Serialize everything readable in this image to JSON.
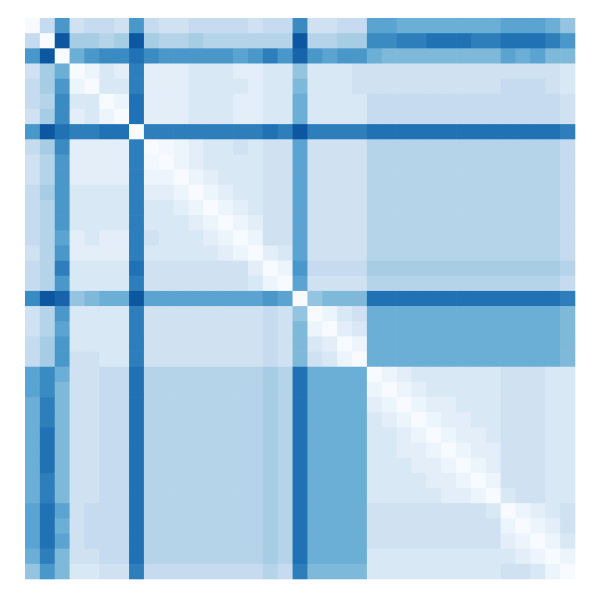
{
  "chart_data": {
    "type": "heatmap",
    "title": "",
    "xlabel": "",
    "ylabel": "",
    "axes_visible": false,
    "colorbar_visible": false,
    "colormap": "Blues",
    "value_range": [
      0,
      1
    ],
    "colors": {
      "low": "#f7fbff",
      "high": "#08306b"
    },
    "rows": 37,
    "cols": 37,
    "diagonal_value": 0,
    "symmetric": true,
    "values": [
      [
        0,
        0.25,
        0.6,
        0.2,
        0.25,
        0.25,
        0.2,
        0.6,
        0.25,
        0.2,
        0.2,
        0.25,
        0.25,
        0.25,
        0.25,
        0.2,
        0.25,
        0.25,
        0.65,
        0.2,
        0.2,
        0.25,
        0.25,
        0.55,
        0.55,
        0.5,
        0.5,
        0.5,
        0.5,
        0.5,
        0.5,
        0.5,
        0.55,
        0.55,
        0.55,
        0.5,
        0.4
      ],
      [
        0.25,
        0,
        0.85,
        0.35,
        0.35,
        0.3,
        0.35,
        0.85,
        0.35,
        0.3,
        0.3,
        0.35,
        0.3,
        0.3,
        0.3,
        0.3,
        0.3,
        0.3,
        0.85,
        0.3,
        0.3,
        0.35,
        0.35,
        0.65,
        0.65,
        0.7,
        0.7,
        0.75,
        0.75,
        0.75,
        0.7,
        0.7,
        0.75,
        0.75,
        0.75,
        0.7,
        0.6
      ],
      [
        0.6,
        0.85,
        0,
        0.5,
        0.6,
        0.65,
        0.65,
        0.75,
        0.65,
        0.6,
        0.6,
        0.6,
        0.6,
        0.6,
        0.55,
        0.6,
        0.7,
        0.6,
        0.8,
        0.6,
        0.55,
        0.6,
        0.6,
        0.5,
        0.45,
        0.45,
        0.45,
        0.45,
        0.45,
        0.45,
        0.45,
        0.45,
        0.55,
        0.5,
        0.55,
        0.45,
        0.45
      ],
      [
        0.2,
        0.35,
        0.5,
        0,
        0.05,
        0.15,
        0.1,
        0.7,
        0.1,
        0.1,
        0.1,
        0.15,
        0.15,
        0.15,
        0.1,
        0.1,
        0.15,
        0.15,
        0.4,
        0.15,
        0.15,
        0.15,
        0.2,
        0.2,
        0.2,
        0.2,
        0.2,
        0.2,
        0.2,
        0.2,
        0.2,
        0.2,
        0.2,
        0.2,
        0.2,
        0.2,
        0.15
      ],
      [
        0.25,
        0.35,
        0.6,
        0.05,
        0,
        0.15,
        0.15,
        0.7,
        0.1,
        0.1,
        0.1,
        0.15,
        0.15,
        0.15,
        0.15,
        0.1,
        0.15,
        0.15,
        0.45,
        0.15,
        0.15,
        0.15,
        0.2,
        0.2,
        0.2,
        0.2,
        0.2,
        0.2,
        0.2,
        0.2,
        0.2,
        0.2,
        0.25,
        0.25,
        0.25,
        0.2,
        0.15
      ],
      [
        0.25,
        0.3,
        0.65,
        0.15,
        0.15,
        0,
        0.05,
        0.75,
        0.1,
        0.1,
        0.1,
        0.15,
        0.15,
        0.15,
        0.1,
        0.1,
        0.15,
        0.15,
        0.5,
        0.15,
        0.15,
        0.15,
        0.15,
        0.25,
        0.25,
        0.25,
        0.25,
        0.25,
        0.25,
        0.25,
        0.25,
        0.25,
        0.25,
        0.25,
        0.25,
        0.25,
        0.2
      ],
      [
        0.2,
        0.35,
        0.65,
        0.1,
        0.15,
        0.05,
        0,
        0.75,
        0.1,
        0.1,
        0.1,
        0.15,
        0.15,
        0.15,
        0.1,
        0.1,
        0.15,
        0.15,
        0.5,
        0.15,
        0.15,
        0.15,
        0.15,
        0.25,
        0.25,
        0.25,
        0.25,
        0.25,
        0.25,
        0.25,
        0.25,
        0.25,
        0.25,
        0.25,
        0.25,
        0.25,
        0.2
      ],
      [
        0.6,
        0.85,
        0.75,
        0.7,
        0.7,
        0.75,
        0.75,
        0,
        0.7,
        0.7,
        0.7,
        0.7,
        0.7,
        0.7,
        0.7,
        0.7,
        0.75,
        0.7,
        0.85,
        0.7,
        0.7,
        0.7,
        0.7,
        0.75,
        0.75,
        0.75,
        0.75,
        0.75,
        0.75,
        0.75,
        0.75,
        0.75,
        0.75,
        0.75,
        0.75,
        0.75,
        0.7
      ],
      [
        0.25,
        0.35,
        0.65,
        0.1,
        0.1,
        0.1,
        0.1,
        0.7,
        0,
        0.02,
        0.05,
        0.1,
        0.15,
        0.15,
        0.2,
        0.15,
        0.2,
        0.2,
        0.55,
        0.2,
        0.2,
        0.2,
        0.2,
        0.3,
        0.3,
        0.3,
        0.3,
        0.3,
        0.3,
        0.3,
        0.3,
        0.3,
        0.3,
        0.3,
        0.3,
        0.3,
        0.25
      ],
      [
        0.2,
        0.3,
        0.6,
        0.1,
        0.1,
        0.1,
        0.1,
        0.7,
        0.02,
        0,
        0.05,
        0.1,
        0.15,
        0.15,
        0.15,
        0.15,
        0.2,
        0.2,
        0.55,
        0.2,
        0.2,
        0.2,
        0.2,
        0.3,
        0.3,
        0.3,
        0.3,
        0.3,
        0.3,
        0.3,
        0.3,
        0.3,
        0.3,
        0.3,
        0.3,
        0.3,
        0.25
      ],
      [
        0.2,
        0.3,
        0.6,
        0.1,
        0.1,
        0.1,
        0.1,
        0.7,
        0.05,
        0.05,
        0,
        0.05,
        0.1,
        0.15,
        0.15,
        0.15,
        0.2,
        0.2,
        0.55,
        0.2,
        0.2,
        0.2,
        0.2,
        0.3,
        0.3,
        0.3,
        0.3,
        0.3,
        0.3,
        0.3,
        0.3,
        0.3,
        0.3,
        0.3,
        0.3,
        0.3,
        0.25
      ],
      [
        0.25,
        0.35,
        0.6,
        0.15,
        0.15,
        0.15,
        0.15,
        0.7,
        0.1,
        0.1,
        0.05,
        0,
        0.05,
        0.1,
        0.15,
        0.15,
        0.2,
        0.2,
        0.55,
        0.2,
        0.2,
        0.2,
        0.2,
        0.3,
        0.3,
        0.3,
        0.3,
        0.3,
        0.3,
        0.3,
        0.3,
        0.3,
        0.3,
        0.3,
        0.3,
        0.3,
        0.25
      ],
      [
        0.25,
        0.3,
        0.6,
        0.15,
        0.15,
        0.15,
        0.15,
        0.7,
        0.15,
        0.15,
        0.1,
        0.05,
        0,
        0.05,
        0.1,
        0.15,
        0.2,
        0.2,
        0.55,
        0.2,
        0.2,
        0.2,
        0.2,
        0.3,
        0.3,
        0.3,
        0.3,
        0.3,
        0.3,
        0.3,
        0.3,
        0.3,
        0.3,
        0.3,
        0.3,
        0.3,
        0.25
      ],
      [
        0.25,
        0.3,
        0.6,
        0.15,
        0.15,
        0.15,
        0.15,
        0.7,
        0.15,
        0.15,
        0.15,
        0.1,
        0.05,
        0,
        0.05,
        0.1,
        0.2,
        0.2,
        0.55,
        0.2,
        0.2,
        0.2,
        0.2,
        0.3,
        0.3,
        0.3,
        0.3,
        0.3,
        0.3,
        0.3,
        0.3,
        0.3,
        0.3,
        0.3,
        0.3,
        0.3,
        0.25
      ],
      [
        0.25,
        0.3,
        0.55,
        0.1,
        0.15,
        0.1,
        0.1,
        0.7,
        0.2,
        0.15,
        0.15,
        0.15,
        0.1,
        0.05,
        0,
        0.05,
        0.2,
        0.2,
        0.55,
        0.2,
        0.2,
        0.2,
        0.2,
        0.3,
        0.3,
        0.3,
        0.3,
        0.3,
        0.3,
        0.3,
        0.3,
        0.3,
        0.3,
        0.3,
        0.3,
        0.3,
        0.25
      ],
      [
        0.2,
        0.3,
        0.6,
        0.1,
        0.1,
        0.1,
        0.1,
        0.7,
        0.15,
        0.15,
        0.15,
        0.15,
        0.15,
        0.1,
        0.05,
        0,
        0.1,
        0.15,
        0.55,
        0.2,
        0.2,
        0.2,
        0.2,
        0.3,
        0.3,
        0.3,
        0.3,
        0.3,
        0.3,
        0.3,
        0.3,
        0.3,
        0.3,
        0.3,
        0.3,
        0.3,
        0.25
      ],
      [
        0.25,
        0.3,
        0.7,
        0.15,
        0.15,
        0.15,
        0.15,
        0.75,
        0.2,
        0.2,
        0.2,
        0.2,
        0.2,
        0.2,
        0.2,
        0.1,
        0,
        0.05,
        0.6,
        0.25,
        0.25,
        0.25,
        0.25,
        0.35,
        0.35,
        0.35,
        0.35,
        0.35,
        0.35,
        0.35,
        0.35,
        0.35,
        0.35,
        0.35,
        0.35,
        0.35,
        0.3
      ],
      [
        0.25,
        0.3,
        0.6,
        0.15,
        0.15,
        0.15,
        0.15,
        0.7,
        0.2,
        0.2,
        0.2,
        0.2,
        0.2,
        0.2,
        0.2,
        0.15,
        0.05,
        0,
        0.55,
        0.2,
        0.2,
        0.2,
        0.2,
        0.3,
        0.3,
        0.3,
        0.3,
        0.3,
        0.3,
        0.3,
        0.3,
        0.3,
        0.3,
        0.3,
        0.3,
        0.3,
        0.25
      ],
      [
        0.65,
        0.85,
        0.8,
        0.4,
        0.45,
        0.5,
        0.5,
        0.85,
        0.55,
        0.55,
        0.55,
        0.55,
        0.55,
        0.55,
        0.55,
        0.55,
        0.6,
        0.55,
        0,
        0.4,
        0.45,
        0.45,
        0.45,
        0.75,
        0.75,
        0.75,
        0.75,
        0.75,
        0.75,
        0.75,
        0.75,
        0.75,
        0.75,
        0.75,
        0.75,
        0.75,
        0.7
      ],
      [
        0.2,
        0.3,
        0.6,
        0.15,
        0.15,
        0.15,
        0.15,
        0.7,
        0.2,
        0.2,
        0.2,
        0.2,
        0.2,
        0.2,
        0.2,
        0.2,
        0.25,
        0.2,
        0.4,
        0,
        0.05,
        0.15,
        0.2,
        0.5,
        0.5,
        0.5,
        0.5,
        0.5,
        0.5,
        0.5,
        0.5,
        0.5,
        0.5,
        0.5,
        0.5,
        0.5,
        0.45
      ],
      [
        0.2,
        0.3,
        0.55,
        0.15,
        0.15,
        0.15,
        0.15,
        0.7,
        0.2,
        0.2,
        0.2,
        0.2,
        0.2,
        0.2,
        0.2,
        0.2,
        0.25,
        0.2,
        0.45,
        0.05,
        0,
        0.1,
        0.15,
        0.5,
        0.5,
        0.5,
        0.5,
        0.5,
        0.5,
        0.5,
        0.5,
        0.5,
        0.5,
        0.5,
        0.5,
        0.5,
        0.45
      ],
      [
        0.25,
        0.35,
        0.6,
        0.15,
        0.15,
        0.15,
        0.15,
        0.7,
        0.2,
        0.2,
        0.2,
        0.2,
        0.2,
        0.2,
        0.2,
        0.2,
        0.25,
        0.2,
        0.45,
        0.15,
        0.1,
        0,
        0.05,
        0.5,
        0.5,
        0.5,
        0.5,
        0.5,
        0.5,
        0.5,
        0.5,
        0.5,
        0.5,
        0.5,
        0.5,
        0.5,
        0.45
      ],
      [
        0.25,
        0.35,
        0.6,
        0.2,
        0.2,
        0.15,
        0.15,
        0.7,
        0.2,
        0.2,
        0.2,
        0.2,
        0.2,
        0.2,
        0.2,
        0.2,
        0.25,
        0.2,
        0.45,
        0.2,
        0.15,
        0.05,
        0,
        0.5,
        0.5,
        0.5,
        0.5,
        0.5,
        0.5,
        0.5,
        0.5,
        0.5,
        0.5,
        0.5,
        0.5,
        0.5,
        0.45
      ],
      [
        0.55,
        0.65,
        0.5,
        0.2,
        0.2,
        0.25,
        0.25,
        0.75,
        0.3,
        0.3,
        0.3,
        0.3,
        0.3,
        0.3,
        0.3,
        0.3,
        0.35,
        0.3,
        0.75,
        0.5,
        0.5,
        0.5,
        0.5,
        0,
        0.05,
        0.1,
        0.15,
        0.15,
        0.15,
        0.15,
        0.15,
        0.15,
        0.2,
        0.2,
        0.2,
        0.15,
        0.15
      ],
      [
        0.55,
        0.65,
        0.45,
        0.2,
        0.2,
        0.25,
        0.25,
        0.75,
        0.3,
        0.3,
        0.3,
        0.3,
        0.3,
        0.3,
        0.3,
        0.3,
        0.35,
        0.3,
        0.75,
        0.5,
        0.5,
        0.5,
        0.5,
        0.05,
        0,
        0.05,
        0.1,
        0.15,
        0.15,
        0.15,
        0.15,
        0.15,
        0.2,
        0.2,
        0.2,
        0.15,
        0.15
      ],
      [
        0.5,
        0.7,
        0.45,
        0.2,
        0.2,
        0.25,
        0.25,
        0.75,
        0.3,
        0.3,
        0.3,
        0.3,
        0.3,
        0.3,
        0.3,
        0.3,
        0.35,
        0.3,
        0.75,
        0.5,
        0.5,
        0.5,
        0.5,
        0.1,
        0.05,
        0,
        0.05,
        0.1,
        0.1,
        0.15,
        0.15,
        0.15,
        0.2,
        0.2,
        0.2,
        0.15,
        0.15
      ],
      [
        0.5,
        0.7,
        0.45,
        0.2,
        0.2,
        0.25,
        0.25,
        0.75,
        0.3,
        0.3,
        0.3,
        0.3,
        0.3,
        0.3,
        0.3,
        0.3,
        0.35,
        0.3,
        0.75,
        0.5,
        0.5,
        0.5,
        0.5,
        0.15,
        0.1,
        0.05,
        0,
        0.05,
        0.1,
        0.1,
        0.15,
        0.15,
        0.2,
        0.2,
        0.2,
        0.15,
        0.15
      ],
      [
        0.5,
        0.75,
        0.45,
        0.2,
        0.2,
        0.25,
        0.25,
        0.75,
        0.3,
        0.3,
        0.3,
        0.3,
        0.3,
        0.3,
        0.3,
        0.3,
        0.35,
        0.3,
        0.75,
        0.5,
        0.5,
        0.5,
        0.5,
        0.15,
        0.15,
        0.1,
        0.05,
        0,
        0.05,
        0.1,
        0.1,
        0.15,
        0.2,
        0.2,
        0.2,
        0.15,
        0.15
      ],
      [
        0.5,
        0.75,
        0.45,
        0.2,
        0.2,
        0.25,
        0.25,
        0.75,
        0.3,
        0.3,
        0.3,
        0.3,
        0.3,
        0.3,
        0.3,
        0.3,
        0.35,
        0.3,
        0.75,
        0.5,
        0.5,
        0.5,
        0.5,
        0.15,
        0.15,
        0.1,
        0.1,
        0.05,
        0,
        0.05,
        0.1,
        0.1,
        0.2,
        0.2,
        0.2,
        0.15,
        0.15
      ],
      [
        0.5,
        0.75,
        0.45,
        0.2,
        0.2,
        0.25,
        0.25,
        0.75,
        0.3,
        0.3,
        0.3,
        0.3,
        0.3,
        0.3,
        0.3,
        0.3,
        0.35,
        0.3,
        0.75,
        0.5,
        0.5,
        0.5,
        0.5,
        0.15,
        0.15,
        0.15,
        0.1,
        0.1,
        0.05,
        0,
        0.05,
        0.1,
        0.2,
        0.2,
        0.2,
        0.15,
        0.15
      ],
      [
        0.5,
        0.7,
        0.45,
        0.2,
        0.2,
        0.25,
        0.25,
        0.75,
        0.3,
        0.3,
        0.3,
        0.3,
        0.3,
        0.3,
        0.3,
        0.3,
        0.35,
        0.3,
        0.75,
        0.5,
        0.5,
        0.5,
        0.5,
        0.15,
        0.15,
        0.15,
        0.15,
        0.1,
        0.1,
        0.05,
        0,
        0.05,
        0.2,
        0.2,
        0.2,
        0.15,
        0.15
      ],
      [
        0.5,
        0.7,
        0.45,
        0.2,
        0.2,
        0.25,
        0.25,
        0.75,
        0.3,
        0.3,
        0.3,
        0.3,
        0.3,
        0.3,
        0.3,
        0.3,
        0.35,
        0.3,
        0.75,
        0.5,
        0.5,
        0.5,
        0.5,
        0.15,
        0.15,
        0.15,
        0.15,
        0.15,
        0.1,
        0.1,
        0.05,
        0,
        0.15,
        0.2,
        0.2,
        0.15,
        0.15
      ],
      [
        0.55,
        0.75,
        0.55,
        0.2,
        0.25,
        0.25,
        0.25,
        0.75,
        0.3,
        0.3,
        0.3,
        0.3,
        0.3,
        0.3,
        0.3,
        0.3,
        0.35,
        0.3,
        0.75,
        0.5,
        0.5,
        0.5,
        0.5,
        0.2,
        0.2,
        0.2,
        0.2,
        0.2,
        0.2,
        0.2,
        0.2,
        0.15,
        0,
        0.05,
        0.1,
        0.15,
        0.2
      ],
      [
        0.55,
        0.75,
        0.5,
        0.2,
        0.25,
        0.25,
        0.25,
        0.75,
        0.3,
        0.3,
        0.3,
        0.3,
        0.3,
        0.3,
        0.3,
        0.3,
        0.35,
        0.3,
        0.75,
        0.5,
        0.5,
        0.5,
        0.5,
        0.2,
        0.2,
        0.2,
        0.2,
        0.2,
        0.2,
        0.2,
        0.2,
        0.2,
        0.05,
        0,
        0.05,
        0.1,
        0.2
      ],
      [
        0.55,
        0.75,
        0.55,
        0.2,
        0.25,
        0.25,
        0.25,
        0.75,
        0.3,
        0.3,
        0.3,
        0.3,
        0.3,
        0.3,
        0.3,
        0.3,
        0.35,
        0.3,
        0.75,
        0.5,
        0.5,
        0.5,
        0.5,
        0.2,
        0.2,
        0.2,
        0.2,
        0.2,
        0.2,
        0.2,
        0.2,
        0.2,
        0.1,
        0.05,
        0,
        0.05,
        0.15
      ],
      [
        0.5,
        0.7,
        0.45,
        0.2,
        0.2,
        0.25,
        0.25,
        0.75,
        0.3,
        0.3,
        0.3,
        0.3,
        0.3,
        0.3,
        0.3,
        0.3,
        0.35,
        0.3,
        0.75,
        0.5,
        0.5,
        0.5,
        0.5,
        0.15,
        0.15,
        0.15,
        0.15,
        0.15,
        0.15,
        0.15,
        0.15,
        0.15,
        0.15,
        0.1,
        0.05,
        0,
        0.05
      ],
      [
        0.4,
        0.6,
        0.45,
        0.15,
        0.15,
        0.2,
        0.2,
        0.7,
        0.25,
        0.25,
        0.25,
        0.25,
        0.25,
        0.25,
        0.25,
        0.25,
        0.3,
        0.25,
        0.7,
        0.45,
        0.45,
        0.45,
        0.45,
        0.15,
        0.15,
        0.15,
        0.15,
        0.15,
        0.15,
        0.15,
        0.15,
        0.15,
        0.2,
        0.2,
        0.15,
        0.05,
        0
      ]
    ]
  }
}
